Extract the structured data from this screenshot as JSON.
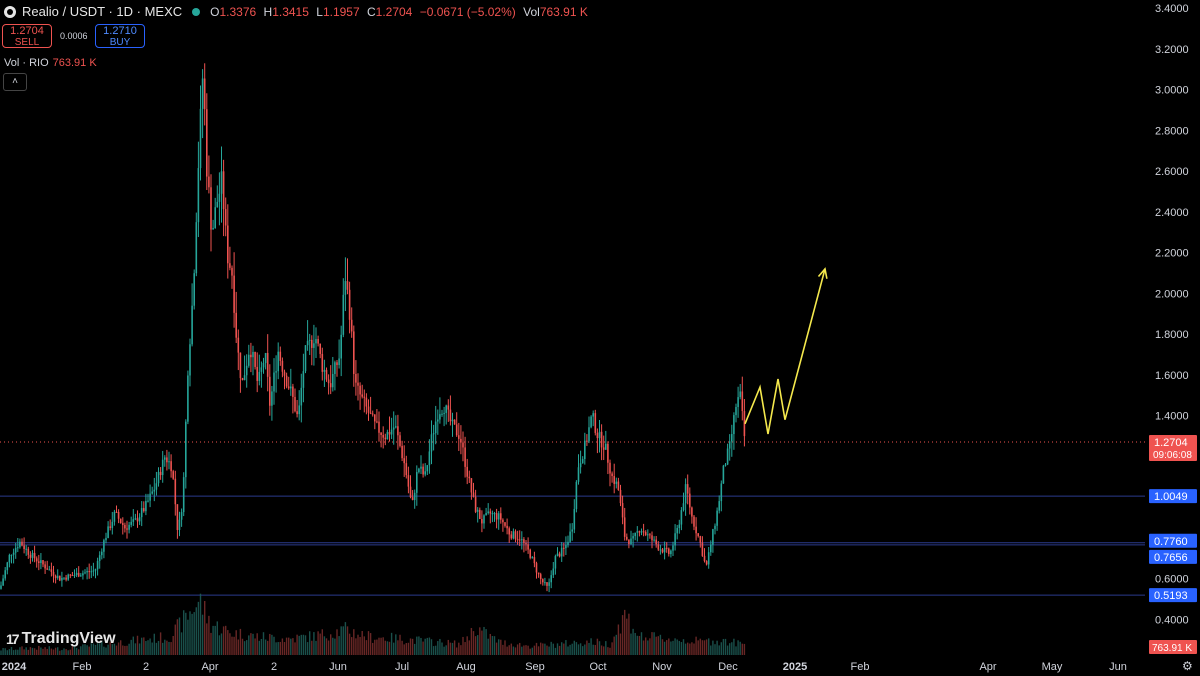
{
  "header": {
    "symbol": "Realio / USDT · 1D · MEXC",
    "o_label": "O",
    "o": "1.3376",
    "h_label": "H",
    "h": "1.3415",
    "l_label": "L",
    "l": "1.1957",
    "c_label": "C",
    "c": "1.2704",
    "change": "−0.0671 (−5.02%)",
    "vol_label": "Vol",
    "vol": "763.91 K"
  },
  "trade": {
    "sell_price": "1.2704",
    "sell_label": "SELL",
    "spread": "0.0006",
    "buy_price": "1.2710",
    "buy_label": "BUY"
  },
  "volume_legend": {
    "label": "Vol · RIO",
    "value": "763.91 K"
  },
  "collapse_glyph": "˄",
  "branding": {
    "mark": "17",
    "name": "TradingView"
  },
  "settings_icon": "⚙",
  "colors": {
    "up": "#26a69a",
    "down": "#ef5350",
    "hline": "#2a3a8c",
    "badge_blue": "#2962ff",
    "badge_red": "#ef5350",
    "projection": "#f5e94d"
  },
  "chart_data": {
    "type": "candlestick",
    "y_axis_labels": [
      "3.4000",
      "3.2000",
      "3.0000",
      "2.8000",
      "2.6000",
      "2.4000",
      "2.2000",
      "2.0000",
      "1.8000",
      "1.6000",
      "1.4000",
      "1.2000",
      "1.0000",
      "0.8000",
      "0.6000",
      "0.4000"
    ],
    "ylim": [
      0.24,
      3.44
    ],
    "x_axis_labels": [
      {
        "label": "2024",
        "bold": true
      },
      {
        "label": "Feb"
      },
      {
        "label": "2"
      },
      {
        "label": "Apr"
      },
      {
        "label": "2"
      },
      {
        "label": "Jun"
      },
      {
        "label": "Jul"
      },
      {
        "label": "Aug"
      },
      {
        "label": "Sep"
      },
      {
        "label": "Oct"
      },
      {
        "label": "Nov"
      },
      {
        "label": "Dec"
      },
      {
        "label": "2025",
        "bold": true
      },
      {
        "label": "Feb"
      },
      {
        "label": "Apr"
      },
      {
        "label": "May"
      },
      {
        "label": "Jun"
      }
    ],
    "horizontal_levels": [
      1.0049,
      0.776,
      0.7656,
      0.5193
    ],
    "level_badges": [
      "1.0049",
      "0.7760",
      "0.7656",
      "0.5193"
    ],
    "current_price": {
      "value": 1.2704,
      "label": "1.2704",
      "countdown": "09:06:08"
    },
    "volume_badge": "763.91 K",
    "price_path": [
      [
        0,
        0.55
      ],
      [
        10,
        0.72
      ],
      [
        20,
        0.78
      ],
      [
        30,
        0.72
      ],
      [
        45,
        0.66
      ],
      [
        60,
        0.6
      ],
      [
        75,
        0.62
      ],
      [
        95,
        0.64
      ],
      [
        105,
        0.8
      ],
      [
        115,
        0.92
      ],
      [
        125,
        0.85
      ],
      [
        135,
        0.88
      ],
      [
        145,
        0.95
      ],
      [
        155,
        1.05
      ],
      [
        165,
        1.2
      ],
      [
        172,
        1.15
      ],
      [
        178,
        0.82
      ],
      [
        183,
        1.0
      ],
      [
        188,
        1.65
      ],
      [
        193,
        2.0
      ],
      [
        198,
        2.6
      ],
      [
        203,
        3.1
      ],
      [
        207,
        2.6
      ],
      [
        212,
        2.3
      ],
      [
        217,
        2.45
      ],
      [
        222,
        2.55
      ],
      [
        227,
        2.2
      ],
      [
        232,
        2.1
      ],
      [
        237,
        1.75
      ],
      [
        242,
        1.55
      ],
      [
        250,
        1.75
      ],
      [
        258,
        1.55
      ],
      [
        265,
        1.7
      ],
      [
        270,
        1.45
      ],
      [
        278,
        1.72
      ],
      [
        285,
        1.6
      ],
      [
        292,
        1.5
      ],
      [
        298,
        1.38
      ],
      [
        305,
        1.7
      ],
      [
        315,
        1.8
      ],
      [
        322,
        1.65
      ],
      [
        330,
        1.55
      ],
      [
        340,
        1.7
      ],
      [
        345,
        2.1
      ],
      [
        350,
        1.9
      ],
      [
        355,
        1.55
      ],
      [
        365,
        1.45
      ],
      [
        375,
        1.35
      ],
      [
        385,
        1.3
      ],
      [
        395,
        1.35
      ],
      [
        405,
        1.15
      ],
      [
        412,
        0.95
      ],
      [
        418,
        1.15
      ],
      [
        425,
        1.1
      ],
      [
        432,
        1.3
      ],
      [
        438,
        1.42
      ],
      [
        444,
        1.45
      ],
      [
        452,
        1.35
      ],
      [
        460,
        1.3
      ],
      [
        468,
        1.1
      ],
      [
        475,
        0.95
      ],
      [
        482,
        0.88
      ],
      [
        490,
        0.92
      ],
      [
        500,
        0.9
      ],
      [
        510,
        0.82
      ],
      [
        520,
        0.8
      ],
      [
        530,
        0.72
      ],
      [
        540,
        0.6
      ],
      [
        548,
        0.55
      ],
      [
        555,
        0.7
      ],
      [
        565,
        0.75
      ],
      [
        572,
        0.85
      ],
      [
        578,
        1.15
      ],
      [
        585,
        1.25
      ],
      [
        592,
        1.4
      ],
      [
        598,
        1.3
      ],
      [
        605,
        1.25
      ],
      [
        612,
        1.1
      ],
      [
        618,
        1.05
      ],
      [
        625,
        0.8
      ],
      [
        632,
        0.78
      ],
      [
        640,
        0.85
      ],
      [
        650,
        0.8
      ],
      [
        660,
        0.75
      ],
      [
        670,
        0.72
      ],
      [
        678,
        0.85
      ],
      [
        686,
        1.05
      ],
      [
        692,
        0.9
      ],
      [
        700,
        0.78
      ],
      [
        706,
        0.65
      ],
      [
        712,
        0.8
      ],
      [
        718,
        0.95
      ],
      [
        724,
        1.15
      ],
      [
        730,
        1.25
      ],
      [
        736,
        1.45
      ],
      [
        740,
        1.5
      ],
      [
        745,
        1.27
      ]
    ],
    "volume": [
      [
        0,
        6
      ],
      [
        30,
        8
      ],
      [
        60,
        7
      ],
      [
        90,
        10
      ],
      [
        120,
        14
      ],
      [
        150,
        18
      ],
      [
        170,
        20
      ],
      [
        185,
        40
      ],
      [
        195,
        55
      ],
      [
        200,
        60
      ],
      [
        210,
        35
      ],
      [
        230,
        25
      ],
      [
        260,
        20
      ],
      [
        290,
        18
      ],
      [
        320,
        22
      ],
      [
        345,
        28
      ],
      [
        370,
        20
      ],
      [
        400,
        18
      ],
      [
        430,
        15
      ],
      [
        460,
        12
      ],
      [
        476,
        30
      ],
      [
        500,
        14
      ],
      [
        530,
        10
      ],
      [
        560,
        12
      ],
      [
        590,
        15
      ],
      [
        610,
        12
      ],
      [
        625,
        45
      ],
      [
        640,
        20
      ],
      [
        670,
        18
      ],
      [
        700,
        15
      ],
      [
        720,
        16
      ],
      [
        745,
        12
      ]
    ],
    "projection": [
      [
        745,
        1.36
      ],
      [
        760,
        1.54
      ],
      [
        768,
        1.31
      ],
      [
        778,
        1.58
      ],
      [
        785,
        1.38
      ],
      [
        825,
        2.12
      ]
    ]
  }
}
